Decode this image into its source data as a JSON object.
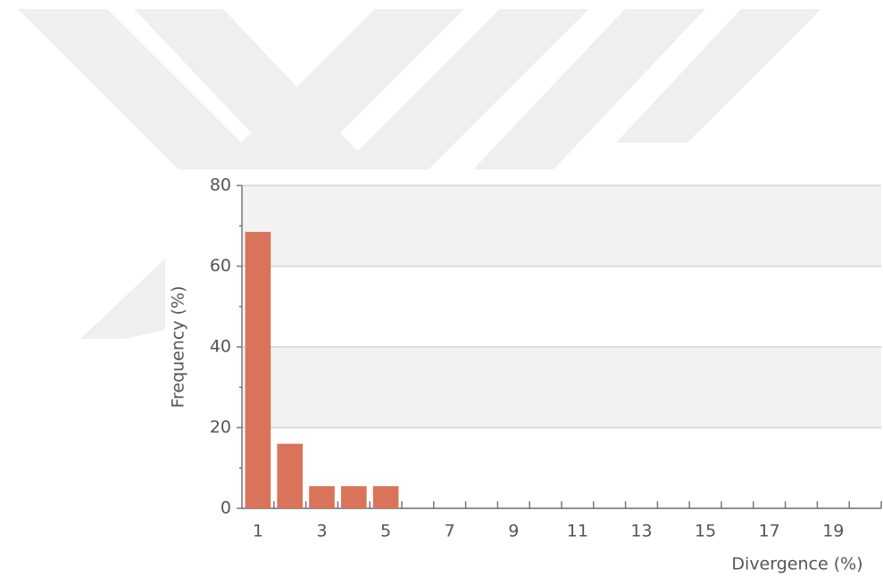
{
  "chart_data": {
    "type": "bar",
    "x_label": "Divergence (%)",
    "y_label": "Frequency (%)",
    "categories": [
      "1",
      null,
      "3",
      null,
      "5",
      null,
      "7",
      null,
      "9",
      null,
      "11",
      null,
      "13",
      null,
      "15",
      null,
      "17",
      null,
      "19",
      null
    ],
    "values": [
      68.5,
      16,
      5.5,
      5.5,
      5.5,
      0,
      0,
      0,
      0,
      0,
      0,
      0,
      0,
      0,
      0,
      0,
      0,
      0,
      0,
      0
    ],
    "color": "#d9745a",
    "ylim": [
      0,
      80
    ],
    "yticks": [
      0,
      20,
      40,
      60,
      80
    ],
    "grid": true
  }
}
